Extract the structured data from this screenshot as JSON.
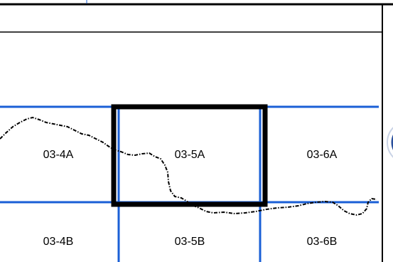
{
  "map": {
    "tiles": [
      {
        "id": "tile-03-4A",
        "label": "03-4A"
      },
      {
        "id": "tile-03-5A",
        "label": "03-5A",
        "selected": true
      },
      {
        "id": "tile-03-6A",
        "label": "03-6A"
      },
      {
        "id": "tile-03-4B",
        "label": "03-4B"
      },
      {
        "id": "tile-03-5B",
        "label": "03-5B"
      },
      {
        "id": "tile-03-6B",
        "label": "03-6B"
      }
    ],
    "colors": {
      "grid_line": "#1a5fd6",
      "selection_border": "#000000",
      "boundary_line": "#000000",
      "frame_line": "#000000",
      "seal_accent": "#2a4f9c"
    }
  }
}
